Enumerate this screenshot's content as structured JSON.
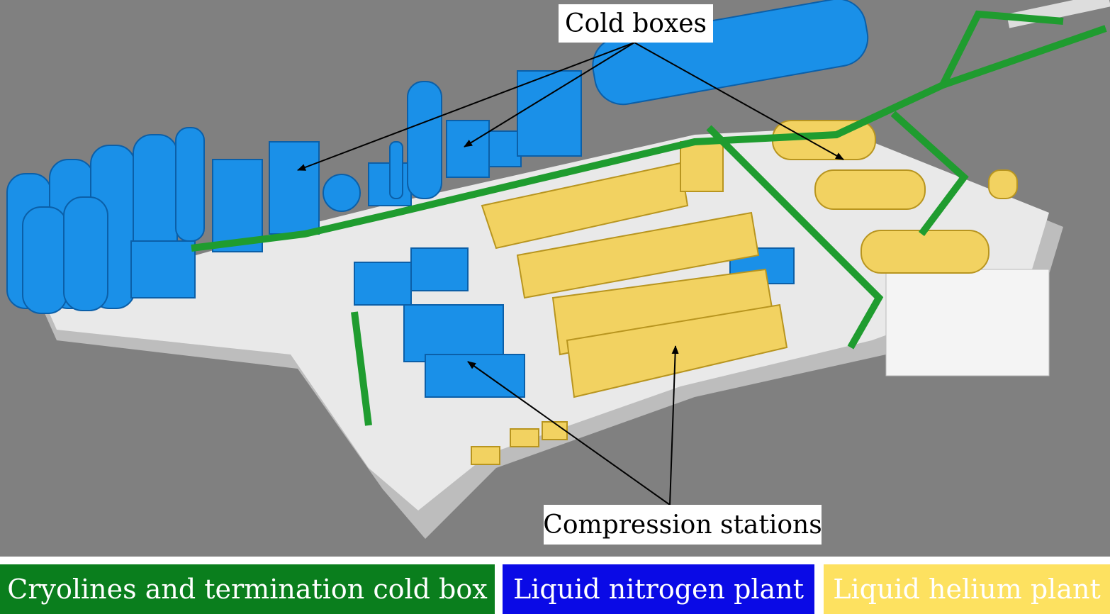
{
  "colors": {
    "background": "#808080",
    "platform": "#e9e9e9",
    "platform_shadow": "#bdbdbd",
    "cryolines": "#1f9c2f",
    "nitrogen": "#1a90e8",
    "helium": "#f2d261",
    "arrow": "#000000"
  },
  "callouts": {
    "cold_boxes": "Cold boxes",
    "compression_stations": "Compression stations"
  },
  "legend": [
    {
      "label": "Cryolines and termination cold box",
      "color": "#0a7e1d"
    },
    {
      "label": "Liquid nitrogen plant",
      "color": "#0a0ae6"
    },
    {
      "label": "Liquid helium plant",
      "color": "#fde160"
    }
  ]
}
